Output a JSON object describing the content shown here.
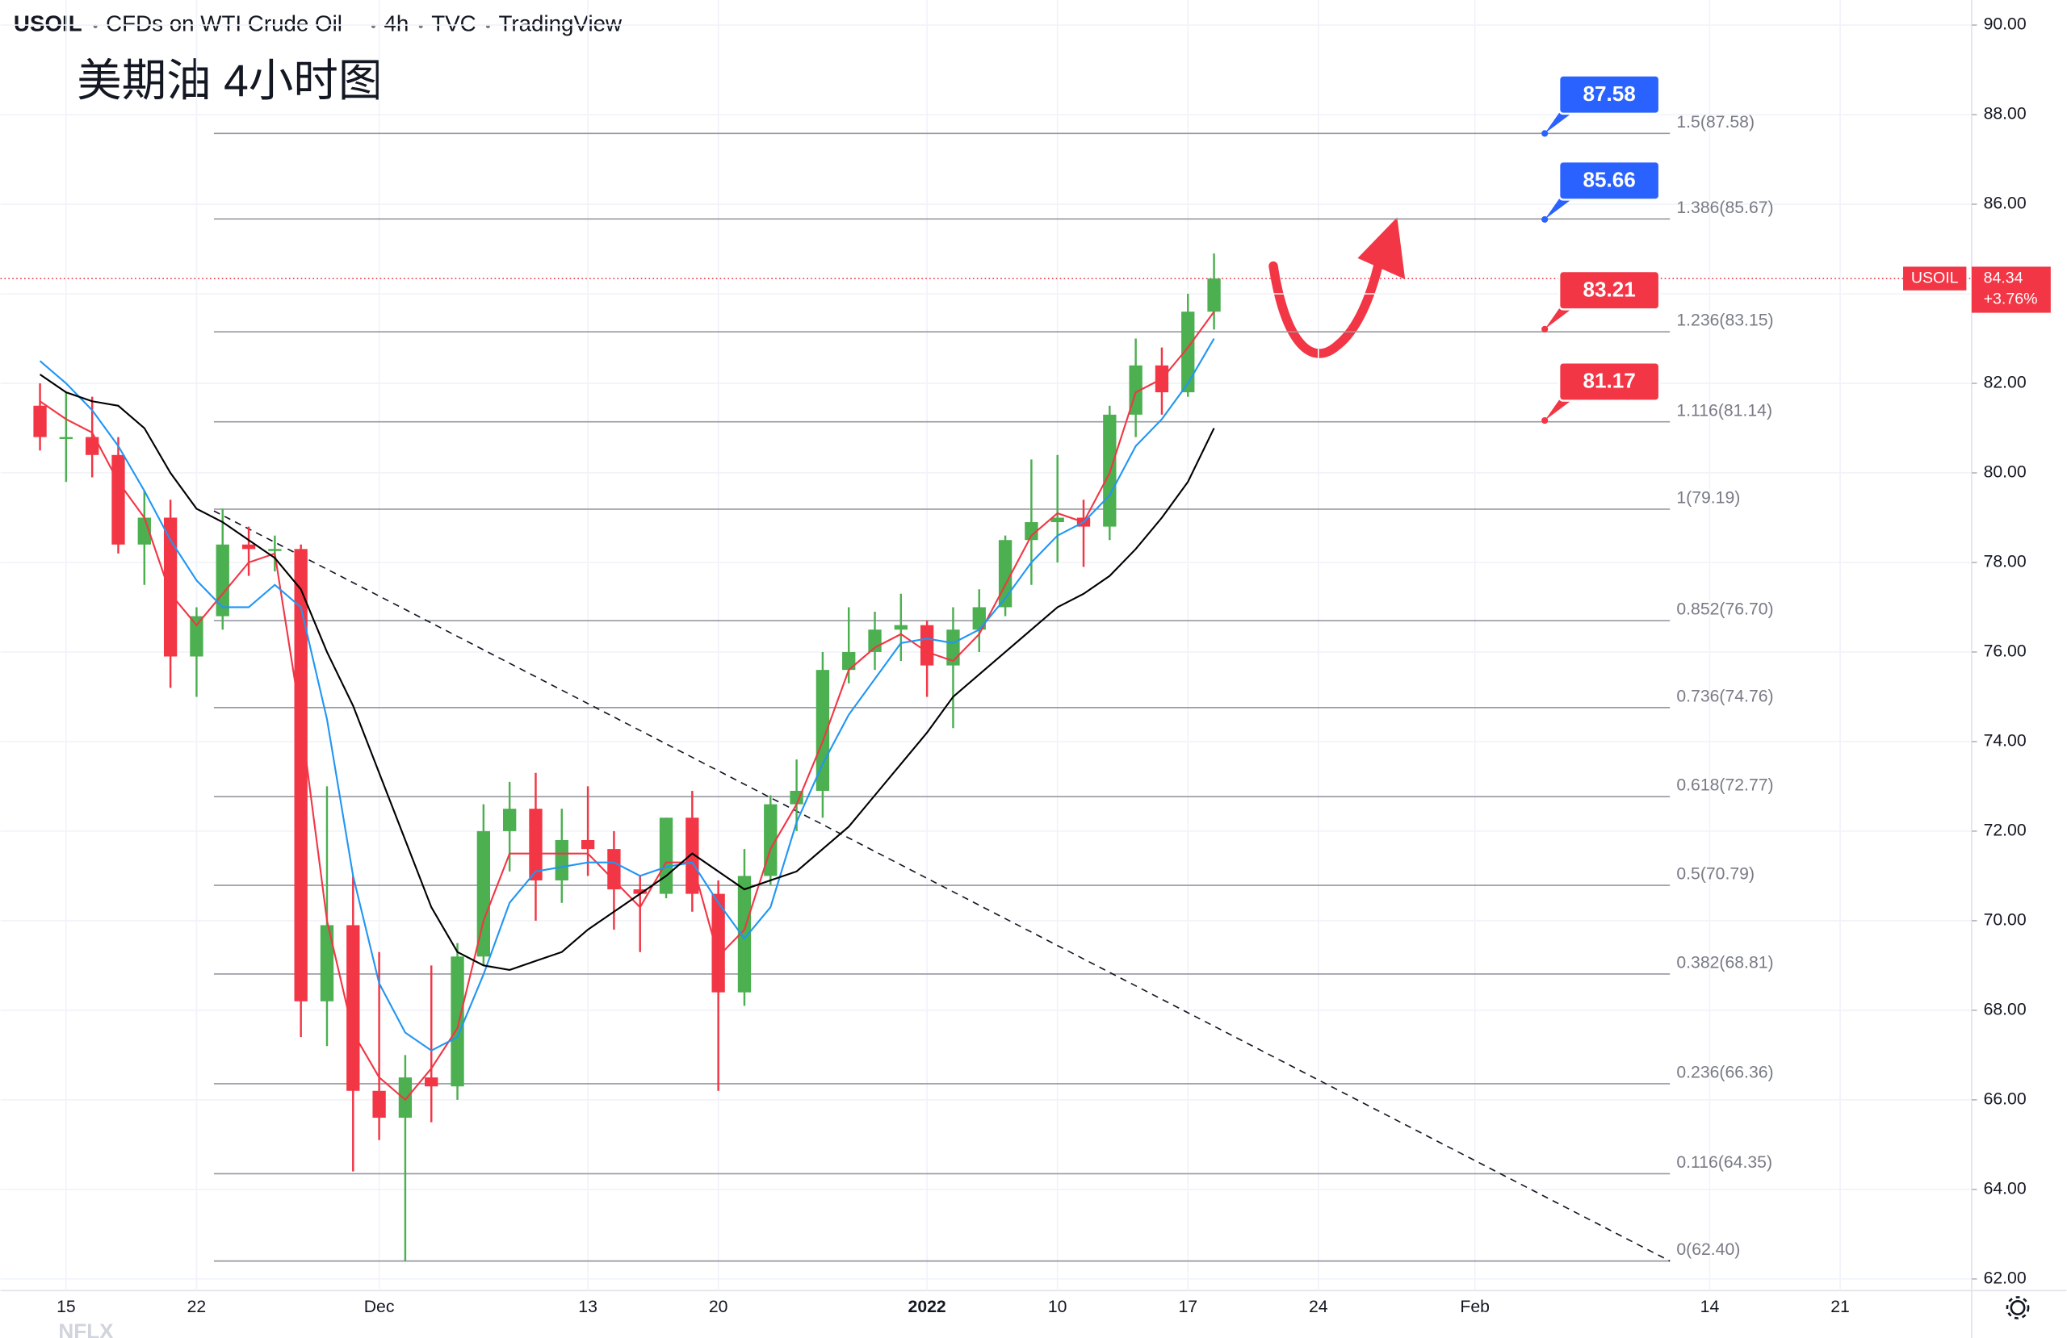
{
  "header": {
    "symbol": "USOIL",
    "description": "CFDs on WTI Crude Oil",
    "interval": "4h",
    "exchange": "TVC",
    "source": "TradingView"
  },
  "chart_data": {
    "type": "candlestick",
    "title": "美期油 4小时图",
    "watermark": "NFLX",
    "categories": [
      null,
      "15",
      null,
      null,
      null,
      null,
      "22",
      null,
      null,
      null,
      null,
      null,
      null,
      "Dec",
      null,
      null,
      null,
      null,
      null,
      null,
      null,
      "13",
      null,
      null,
      null,
      null,
      "20",
      null,
      null,
      null,
      null,
      null,
      null,
      null,
      "2022",
      null,
      null,
      null,
      null,
      "10",
      null,
      null,
      null,
      null,
      "17",
      null,
      null,
      null,
      null,
      "24",
      null,
      null,
      null,
      null,
      null,
      "Feb",
      null,
      null,
      null,
      null,
      null,
      null,
      null,
      null,
      "14",
      null,
      null,
      null,
      null,
      "21",
      null,
      null,
      null,
      null
    ],
    "open": [
      81.5,
      80.8,
      80.8,
      80.4,
      78.4,
      79.0,
      75.9,
      76.8,
      78.4,
      78.3,
      78.3,
      68.2,
      69.9,
      66.2,
      65.6,
      66.5,
      66.3,
      69.2,
      72.0,
      72.5,
      70.9,
      71.8,
      71.6,
      70.7,
      70.6,
      72.3,
      70.6,
      68.4,
      71.0,
      72.6,
      72.9,
      75.6,
      76.0,
      76.5,
      76.6,
      75.7,
      76.5,
      77.0,
      78.5,
      78.9,
      79.0,
      78.8,
      81.3,
      82.4,
      81.8,
      83.6,
      null,
      null,
      null,
      null,
      null,
      null,
      null,
      null,
      null,
      null,
      null,
      null,
      null,
      null,
      null,
      null,
      null,
      null,
      null,
      null,
      null,
      null,
      null,
      null,
      null,
      null,
      null,
      null
    ],
    "high": [
      82.0,
      81.8,
      81.7,
      80.8,
      79.6,
      79.4,
      77.0,
      79.2,
      78.8,
      78.6,
      78.4,
      73.0,
      71.0,
      69.3,
      67.0,
      69.0,
      69.5,
      72.6,
      73.1,
      73.3,
      72.5,
      73.0,
      72.0,
      71.0,
      72.3,
      72.9,
      70.9,
      71.6,
      72.8,
      73.6,
      76.0,
      77.0,
      76.9,
      77.3,
      76.7,
      77.0,
      77.4,
      78.6,
      80.3,
      80.4,
      79.4,
      81.5,
      83.0,
      82.8,
      84.0,
      84.9,
      null,
      null,
      null,
      null,
      null,
      null,
      null,
      null,
      null,
      null,
      null,
      null,
      null,
      null,
      null,
      null,
      null,
      null,
      null,
      null,
      null,
      null,
      null,
      null,
      null,
      null,
      null,
      null
    ],
    "low": [
      80.5,
      79.8,
      79.9,
      78.2,
      77.5,
      75.2,
      75.0,
      76.5,
      77.7,
      77.8,
      67.4,
      67.2,
      64.4,
      65.1,
      62.4,
      65.5,
      66.0,
      69.0,
      71.1,
      70.0,
      70.4,
      71.0,
      69.8,
      69.3,
      70.5,
      70.2,
      66.2,
      68.1,
      70.8,
      72.0,
      72.3,
      75.3,
      75.6,
      75.8,
      75.0,
      74.3,
      76.0,
      76.8,
      77.5,
      78.0,
      77.9,
      78.5,
      80.8,
      81.3,
      81.7,
      83.2,
      null,
      null,
      null,
      null,
      null,
      null,
      null,
      null,
      null,
      null,
      null,
      null,
      null,
      null,
      null,
      null,
      null,
      null,
      null,
      null,
      null,
      null,
      null,
      null,
      null,
      null,
      null,
      null
    ],
    "close": [
      80.8,
      80.8,
      80.4,
      78.4,
      79.0,
      75.9,
      76.8,
      78.4,
      78.3,
      78.3,
      68.2,
      69.9,
      66.2,
      65.6,
      66.5,
      66.3,
      69.2,
      72.0,
      72.5,
      70.9,
      71.8,
      71.6,
      70.7,
      70.6,
      72.3,
      70.6,
      68.4,
      71.0,
      72.6,
      72.9,
      75.6,
      76.0,
      76.5,
      76.6,
      75.7,
      76.5,
      77.0,
      78.5,
      78.9,
      79.0,
      78.8,
      81.3,
      82.4,
      81.8,
      83.6,
      84.34,
      null,
      null,
      null,
      null,
      null,
      null,
      null,
      null,
      null,
      null,
      null,
      null,
      null,
      null,
      null,
      null,
      null,
      null,
      null,
      null,
      null,
      null,
      null,
      null,
      null,
      null,
      null,
      null
    ],
    "up_color": "#4caf50",
    "down_color": "#f23645",
    "lines": [
      {
        "color": "#f23645",
        "values": [
          81.6,
          81.2,
          80.9,
          79.8,
          79.0,
          77.3,
          76.6,
          77.3,
          78.0,
          78.2,
          74.5,
          70.0,
          67.5,
          66.5,
          66.0,
          66.7,
          67.6,
          70.0,
          71.5,
          71.5,
          71.5,
          71.5,
          70.9,
          70.3,
          71.3,
          71.3,
          69.2,
          69.8,
          71.6,
          72.6,
          74.0,
          75.6,
          76.1,
          76.4,
          76.0,
          75.8,
          76.4,
          77.5,
          78.6,
          79.1,
          78.9,
          80.0,
          81.8,
          82.1,
          82.8,
          83.6,
          null,
          null,
          null,
          null,
          null,
          null,
          null,
          null,
          null,
          null,
          null,
          null,
          null,
          null,
          null,
          null,
          null,
          null,
          null,
          null,
          null,
          null,
          null,
          null,
          null,
          null,
          null,
          null
        ]
      },
      {
        "color": "#2196f3",
        "values": [
          82.5,
          82.0,
          81.4,
          80.6,
          79.6,
          78.5,
          77.6,
          77.0,
          77.0,
          77.5,
          77.0,
          74.5,
          71.0,
          68.6,
          67.5,
          67.1,
          67.4,
          68.8,
          70.4,
          71.1,
          71.2,
          71.3,
          71.3,
          71.0,
          71.2,
          71.3,
          70.4,
          69.6,
          70.3,
          72.2,
          73.5,
          74.6,
          75.4,
          76.2,
          76.3,
          76.2,
          76.5,
          77.2,
          78.0,
          78.6,
          78.9,
          79.5,
          80.6,
          81.2,
          82.0,
          83.0,
          null,
          null,
          null,
          null,
          null,
          null,
          null,
          null,
          null,
          null,
          null,
          null,
          null,
          null,
          null,
          null,
          null,
          null,
          null,
          null,
          null,
          null,
          null,
          null,
          null,
          null,
          null,
          null
        ]
      },
      {
        "color": "#000000",
        "values": [
          82.2,
          81.8,
          81.6,
          81.5,
          81.0,
          80.0,
          79.2,
          78.9,
          78.5,
          78.1,
          77.4,
          76.0,
          74.8,
          73.3,
          71.8,
          70.3,
          69.3,
          69.0,
          68.9,
          69.1,
          69.3,
          69.8,
          70.2,
          70.6,
          71.0,
          71.5,
          71.1,
          70.7,
          70.9,
          71.1,
          71.6,
          72.1,
          72.8,
          73.5,
          74.2,
          75.0,
          75.5,
          76.0,
          76.5,
          77.0,
          77.3,
          77.7,
          78.3,
          79.0,
          79.8,
          81.0,
          null,
          null,
          null,
          null,
          null,
          null,
          null,
          null,
          null,
          null,
          null,
          null,
          null,
          null,
          null,
          null,
          null,
          null,
          null,
          null,
          null,
          null,
          null,
          null,
          null,
          null,
          null,
          null
        ]
      }
    ],
    "ylim": [
      61.74,
      90.56
    ],
    "yticks": [
      {
        "value": 62,
        "label": "62.00"
      },
      {
        "value": 64,
        "label": "64.00"
      },
      {
        "value": 66,
        "label": "66.00"
      },
      {
        "value": 68,
        "label": "68.00"
      },
      {
        "value": 70,
        "label": "70.00"
      },
      {
        "value": 72,
        "label": "72.00"
      },
      {
        "value": 74,
        "label": "74.00"
      },
      {
        "value": 76,
        "label": "76.00"
      },
      {
        "value": 78,
        "label": "78.00"
      },
      {
        "value": 80,
        "label": "80.00"
      },
      {
        "value": 82,
        "label": "82.00"
      },
      {
        "value": 84,
        "label": "84.00"
      },
      {
        "value": 86,
        "label": "86.00"
      },
      {
        "value": 88,
        "label": "88.00"
      },
      {
        "value": 90,
        "label": "90.00"
      }
    ],
    "grid": true,
    "fib_levels": [
      {
        "value": 87.58,
        "label": "1.5(87.58)"
      },
      {
        "value": 85.67,
        "label": "1.386(85.67)"
      },
      {
        "value": 83.15,
        "label": "1.236(83.15)"
      },
      {
        "value": 81.14,
        "label": "1.116(81.14)"
      },
      {
        "value": 79.19,
        "label": "1(79.19)"
      },
      {
        "value": 76.7,
        "label": "0.852(76.70)"
      },
      {
        "value": 74.76,
        "label": "0.736(74.76)"
      },
      {
        "value": 72.77,
        "label": "0.618(72.77)"
      },
      {
        "value": 70.79,
        "label": "0.5(70.79)"
      },
      {
        "value": 68.81,
        "label": "0.382(68.81)"
      },
      {
        "value": 66.36,
        "label": "0.236(66.36)"
      },
      {
        "value": 64.35,
        "label": "0.116(64.35)"
      },
      {
        "value": 62.4,
        "label": "0(62.40)"
      }
    ],
    "trendline": [
      79.15,
      62.4
    ],
    "targets": [
      {
        "value": 87.58,
        "color": "#2962ff"
      },
      {
        "value": 85.66,
        "color": "#2962ff"
      },
      {
        "value": 83.21,
        "color": "#f23645"
      },
      {
        "value": 81.17,
        "color": "#f23645"
      }
    ],
    "last_price": {
      "value": 84.34,
      "change": "+3.76%",
      "color": "#f23645"
    }
  }
}
